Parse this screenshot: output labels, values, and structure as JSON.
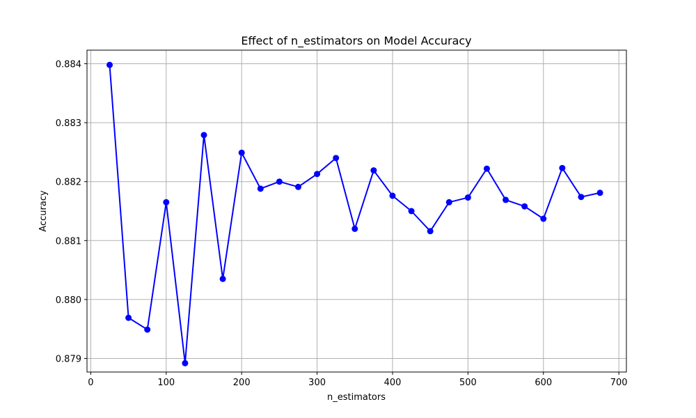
{
  "chart_data": {
    "type": "line",
    "title": "Effect of n_estimators on Model Accuracy",
    "xlabel": "n_estimators",
    "ylabel": "Accuracy",
    "xlim": [
      -5,
      710
    ],
    "ylim": [
      0.87877,
      0.88423
    ],
    "xticks": [
      0,
      100,
      200,
      300,
      400,
      500,
      600,
      700
    ],
    "xtick_labels": [
      "0",
      "100",
      "200",
      "300",
      "400",
      "500",
      "600",
      "700"
    ],
    "yticks": [
      0.879,
      0.88,
      0.881,
      0.882,
      0.883,
      0.884
    ],
    "ytick_labels": [
      "0.879",
      "0.880",
      "0.881",
      "0.882",
      "0.883",
      "0.884"
    ],
    "grid": true,
    "series": [
      {
        "color": "#0000ff",
        "marker": "circle",
        "x": [
          25,
          50,
          75,
          100,
          125,
          150,
          175,
          200,
          225,
          250,
          275,
          300,
          325,
          350,
          375,
          400,
          425,
          450,
          475,
          500,
          525,
          550,
          575,
          600,
          625,
          650,
          675
        ],
        "y": [
          0.88398,
          0.87969,
          0.87949,
          0.88165,
          0.87892,
          0.88279,
          0.88035,
          0.88249,
          0.88188,
          0.882,
          0.88191,
          0.88213,
          0.8824,
          0.8812,
          0.88219,
          0.88176,
          0.8815,
          0.88116,
          0.88165,
          0.88173,
          0.88222,
          0.88169,
          0.88158,
          0.88137,
          0.88223,
          0.88174,
          0.88181
        ]
      }
    ]
  }
}
